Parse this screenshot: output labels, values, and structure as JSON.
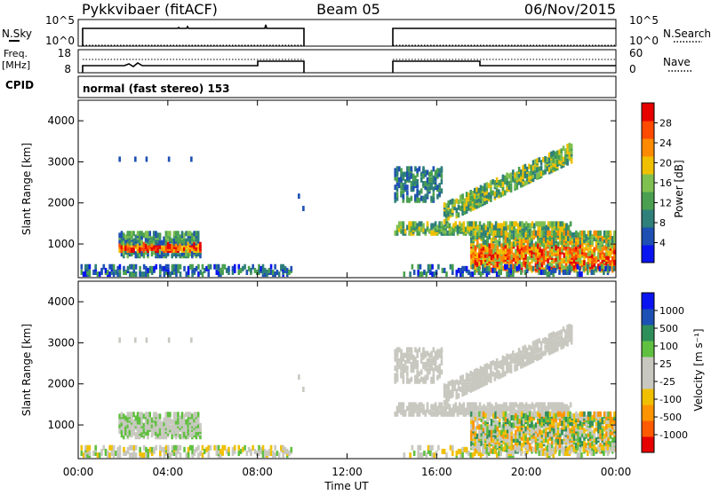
{
  "header": {
    "station": "Pykkvibaer (fitACF)",
    "beam": "Beam 05",
    "date": "06/Nov/2015"
  },
  "nsky_panel": {
    "left_label": "N.Sky",
    "right_label": "N.Search",
    "left_ticks": [
      "10^5",
      "10^0"
    ],
    "right_ticks": [
      "10^5",
      "10^0"
    ]
  },
  "freq_panel": {
    "left_label_1": "Freq.",
    "left_label_2": "[MHz]",
    "right_label": "Nave",
    "left_ticks": [
      "18",
      "8"
    ],
    "right_ticks": [
      "60",
      "0"
    ]
  },
  "cpid_panel": {
    "label": "CPID",
    "text": "normal (fast stereo) 153"
  },
  "time_axis": {
    "ticks": [
      "00:00",
      "04:00",
      "08:00",
      "12:00",
      "16:00",
      "20:00",
      "00:00"
    ],
    "label": "Time UT"
  },
  "colors": {
    "power": [
      "#0a14f0",
      "#1e50b4",
      "#2f7f7a",
      "#4aa050",
      "#80c050",
      "#f0c000",
      "#ff8a00",
      "#ff4a00",
      "#e60000"
    ],
    "velocity": [
      "#e60000",
      "#ff5a00",
      "#ff9400",
      "#f0c000",
      "#c8c8c0",
      "#c8c8c0",
      "#60c040",
      "#2f8f5a",
      "#1c50b4",
      "#0a14f0"
    ]
  },
  "chart_data": [
    {
      "type": "heatmap",
      "name": "power",
      "ylabel": "Slant Range [km]",
      "yticks": [
        "1000",
        "2000",
        "3000",
        "4000"
      ],
      "ylim": [
        180,
        4500
      ],
      "xlim_hours": [
        0,
        24
      ],
      "colorbar_label": "Power [dB]",
      "colorbar_ticks": [
        "4",
        "8",
        "12",
        "16",
        "20",
        "24",
        "28"
      ],
      "clim": [
        0,
        30
      ]
    },
    {
      "type": "heatmap",
      "name": "velocity",
      "ylabel": "Slant Range [km]",
      "yticks": [
        "1000",
        "2000",
        "3000",
        "4000"
      ],
      "ylim": [
        180,
        4500
      ],
      "xlim_hours": [
        0,
        24
      ],
      "colorbar_label": "Velocity [m s⁻¹]",
      "colorbar_ticks": [
        "1000",
        "500",
        "100",
        "25",
        "-25",
        "-100",
        "-500",
        "-1000"
      ],
      "clim": [
        -1000,
        1000
      ]
    }
  ]
}
